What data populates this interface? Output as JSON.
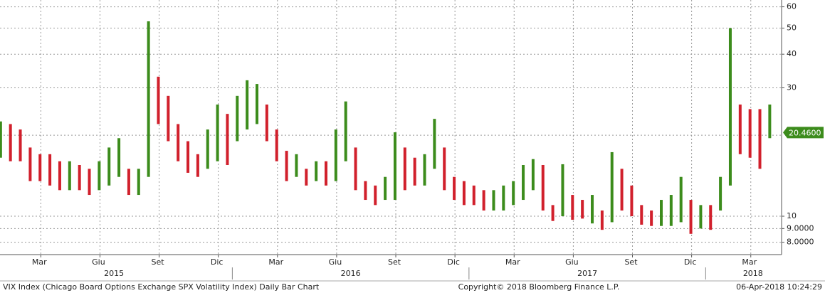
{
  "chart_data": {
    "type": "range-bar",
    "log_scale": true,
    "grid": true,
    "colors": {
      "up": "#3c8c1c",
      "down": "#d1202c",
      "tag": "#3c8c1c"
    },
    "ylim": [
      7.2,
      63.6
    ],
    "yticks": [
      {
        "value": 8,
        "label": "8.0000"
      },
      {
        "value": 9,
        "label": "9.0000"
      },
      10,
      30,
      40,
      50,
      60
    ],
    "ygrid": [
      8,
      9,
      10,
      20,
      30,
      40,
      50,
      60
    ],
    "xlim": [
      0.22,
      39.85
    ],
    "xticks": [
      {
        "value": 2,
        "label": "Mar"
      },
      {
        "value": 5,
        "label": "Giu"
      },
      {
        "value": 8,
        "label": "Set"
      },
      {
        "value": 11,
        "label": "Dic"
      },
      {
        "value": 14,
        "label": "Mar"
      },
      {
        "value": 17,
        "label": "Giu"
      },
      {
        "value": 20,
        "label": "Set"
      },
      {
        "value": 23,
        "label": "Dic"
      },
      {
        "value": 26,
        "label": "Mar"
      },
      {
        "value": 29,
        "label": "Giu"
      },
      {
        "value": 32,
        "label": "Set"
      },
      {
        "value": 35,
        "label": "Dic"
      },
      {
        "value": 38,
        "label": "Mar"
      }
    ],
    "year_labels": [
      {
        "value": 6,
        "label": "2015"
      },
      {
        "value": 18,
        "label": "2016"
      },
      {
        "value": 30,
        "label": "2017"
      },
      {
        "value": 38.4,
        "label": "2018"
      }
    ],
    "year_breaks": [
      12,
      24,
      36
    ],
    "x": [
      0.25,
      0.75,
      1.25,
      1.75,
      2.25,
      2.75,
      3.25,
      3.75,
      4.25,
      4.75,
      5.25,
      5.75,
      6.25,
      6.75,
      7.25,
      7.75,
      8.25,
      8.75,
      9.25,
      9.75,
      10.25,
      10.75,
      11.25,
      11.75,
      12.25,
      12.75,
      13.25,
      13.75,
      14.25,
      14.75,
      15.25,
      15.75,
      16.25,
      16.75,
      17.25,
      17.75,
      18.25,
      18.75,
      19.25,
      19.75,
      20.25,
      20.75,
      21.25,
      21.75,
      22.25,
      22.75,
      23.25,
      23.75,
      24.25,
      24.75,
      25.25,
      25.75,
      26.25,
      26.75,
      27.25,
      27.75,
      28.25,
      28.75,
      29.25,
      29.75,
      30.25,
      30.75,
      31.25,
      31.75,
      32.25,
      32.75,
      33.25,
      33.75,
      34.25,
      34.75,
      35.25,
      35.75,
      36.25,
      36.75,
      37.25,
      37.75,
      38.25,
      38.75,
      39.25
    ],
    "high": [
      22.5,
      22,
      21,
      18,
      17,
      17,
      16,
      16,
      15.5,
      15,
      16,
      18,
      19.5,
      15,
      15,
      53,
      33,
      28,
      22,
      19,
      17,
      21,
      26,
      24,
      28,
      32,
      31,
      26,
      21,
      17.5,
      17,
      15,
      16,
      16,
      21,
      26.7,
      18,
      13.5,
      13,
      14,
      20.5,
      18,
      16.5,
      17,
      23,
      18,
      14,
      13.5,
      13,
      12.5,
      12.5,
      13,
      13.5,
      15.5,
      16.3,
      15.5,
      11,
      15.6,
      12,
      11.5,
      12,
      10.5,
      17.3,
      15,
      13,
      11,
      10.5,
      11.5,
      12,
      14,
      11.5,
      11,
      11,
      14,
      50,
      26,
      25,
      25,
      26
    ],
    "low": [
      16.5,
      16,
      16,
      13.5,
      13.5,
      13,
      12.5,
      12.5,
      12.5,
      12,
      12.5,
      13,
      14,
      12,
      12,
      14,
      22,
      19,
      16,
      14.5,
      14,
      15,
      16,
      15.5,
      19,
      21,
      22,
      19,
      16,
      13.5,
      14,
      13,
      13.5,
      13,
      13.5,
      16,
      12.5,
      11.5,
      11,
      11.5,
      11.5,
      12.5,
      13,
      13,
      15,
      12.5,
      11.5,
      11,
      11,
      10.5,
      10.5,
      10.5,
      11,
      11.5,
      12.5,
      10.5,
      9.6,
      10,
      9.7,
      9.8,
      9.4,
      8.9,
      9.5,
      10.5,
      10,
      9.3,
      9.2,
      9.2,
      9.2,
      9.5,
      8.6,
      9,
      8.9,
      10.5,
      13,
      17,
      16.5,
      15,
      19.5
    ],
    "last_price": {
      "value": 20.46,
      "label": "20.4600"
    },
    "footer_left": "VIX Index (Chicago Board Options Exchange SPX Volatility Index) Daily Bar Chart",
    "footer_center": "Copyright© 2018 Bloomberg Finance L.P.",
    "footer_right": "06-Apr-2018 10:24:29"
  }
}
